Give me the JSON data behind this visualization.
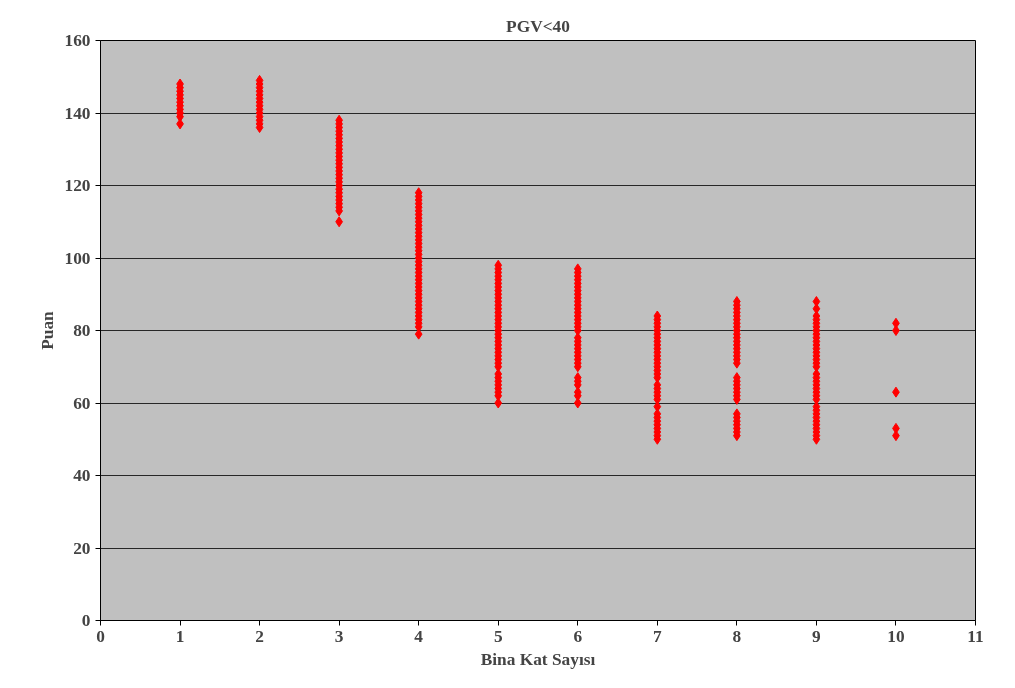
{
  "chart_data": {
    "type": "scatter",
    "title": "PGV<40",
    "xlabel": "Bina Kat Sayısı",
    "ylabel": "Puan",
    "xlim": [
      0,
      11
    ],
    "xticks": [
      0,
      1,
      2,
      3,
      4,
      5,
      6,
      7,
      8,
      9,
      10,
      11
    ],
    "ylim": [
      0,
      160
    ],
    "yticks": [
      0,
      20,
      40,
      60,
      80,
      100,
      120,
      140,
      160
    ],
    "grid": "y",
    "marker": "diamond",
    "series": [
      {
        "color": "#ff0000",
        "x": [
          1,
          1,
          1,
          1,
          1,
          1,
          1,
          1,
          1,
          1,
          1,
          2,
          2,
          2,
          2,
          2,
          2,
          2,
          2,
          2,
          2,
          2,
          2,
          2,
          2,
          3,
          3,
          3,
          3,
          3,
          3,
          3,
          3,
          3,
          3,
          3,
          3,
          3,
          3,
          3,
          3,
          3,
          3,
          3,
          3,
          3,
          3,
          3,
          3,
          3,
          3,
          3,
          4,
          4,
          4,
          4,
          4,
          4,
          4,
          4,
          4,
          4,
          4,
          4,
          4,
          4,
          4,
          4,
          4,
          4,
          4,
          4,
          4,
          4,
          4,
          4,
          4,
          4,
          4,
          4,
          4,
          4,
          4,
          4,
          4,
          4,
          4,
          4,
          4,
          4,
          4,
          5,
          5,
          5,
          5,
          5,
          5,
          5,
          5,
          5,
          5,
          5,
          5,
          5,
          5,
          5,
          5,
          5,
          5,
          5,
          5,
          5,
          5,
          5,
          5,
          5,
          5,
          5,
          5,
          5,
          5,
          5,
          5,
          5,
          5,
          5,
          5,
          5,
          6,
          6,
          6,
          6,
          6,
          6,
          6,
          6,
          6,
          6,
          6,
          6,
          6,
          6,
          6,
          6,
          6,
          6,
          6,
          6,
          6,
          6,
          6,
          6,
          6,
          6,
          6,
          6,
          6,
          6,
          6,
          6,
          6,
          7,
          7,
          7,
          7,
          7,
          7,
          7,
          7,
          7,
          7,
          7,
          7,
          7,
          7,
          7,
          7,
          7,
          7,
          7,
          7,
          7,
          7,
          7,
          7,
          7,
          7,
          7,
          7,
          7,
          7,
          7,
          7,
          8,
          8,
          8,
          8,
          8,
          8,
          8,
          8,
          8,
          8,
          8,
          8,
          8,
          8,
          8,
          8,
          8,
          8,
          8,
          8,
          8,
          8,
          8,
          8,
          8,
          8,
          8,
          8,
          8,
          8,
          8,
          8,
          9,
          9,
          9,
          9,
          9,
          9,
          9,
          9,
          9,
          9,
          9,
          9,
          9,
          9,
          9,
          9,
          9,
          9,
          9,
          9,
          9,
          9,
          9,
          9,
          9,
          9,
          9,
          9,
          9,
          9,
          9,
          9,
          9,
          9,
          9,
          10,
          10,
          10,
          10,
          10
        ],
        "values": [
          137,
          139,
          140,
          141,
          142,
          143,
          144,
          145,
          146,
          147,
          148,
          136,
          137,
          138,
          139,
          140,
          141,
          142,
          143,
          144,
          145,
          146,
          147,
          148,
          149,
          110,
          113,
          114,
          115,
          116,
          117,
          118,
          119,
          120,
          121,
          122,
          123,
          124,
          125,
          126,
          127,
          128,
          129,
          130,
          131,
          132,
          133,
          134,
          135,
          136,
          137,
          138,
          79,
          81,
          82,
          83,
          84,
          85,
          86,
          87,
          88,
          89,
          90,
          91,
          92,
          93,
          94,
          95,
          96,
          97,
          98,
          99,
          100,
          101,
          102,
          103,
          104,
          105,
          106,
          107,
          108,
          109,
          110,
          111,
          112,
          113,
          114,
          115,
          116,
          117,
          118,
          60,
          62,
          63,
          64,
          65,
          66,
          67,
          68,
          70,
          71,
          72,
          73,
          74,
          75,
          76,
          77,
          78,
          79,
          80,
          81,
          82,
          83,
          84,
          85,
          86,
          87,
          88,
          89,
          90,
          91,
          92,
          93,
          94,
          95,
          96,
          97,
          98,
          60,
          62,
          63,
          65,
          66,
          67,
          70,
          71,
          72,
          73,
          74,
          75,
          76,
          77,
          78,
          80,
          81,
          82,
          83,
          84,
          85,
          86,
          87,
          88,
          89,
          90,
          91,
          92,
          93,
          94,
          95,
          96,
          97,
          50,
          51,
          52,
          53,
          54,
          55,
          56,
          57,
          59,
          61,
          62,
          63,
          64,
          65,
          67,
          68,
          69,
          70,
          71,
          72,
          73,
          74,
          75,
          76,
          77,
          78,
          79,
          80,
          81,
          82,
          83,
          84,
          51,
          52,
          53,
          54,
          55,
          56,
          57,
          61,
          62,
          63,
          64,
          65,
          66,
          67,
          71,
          72,
          73,
          74,
          75,
          76,
          77,
          78,
          79,
          80,
          81,
          82,
          83,
          84,
          85,
          86,
          87,
          88,
          50,
          51,
          52,
          53,
          54,
          55,
          56,
          57,
          58,
          59,
          61,
          62,
          63,
          64,
          65,
          66,
          67,
          68,
          70,
          71,
          72,
          73,
          74,
          75,
          76,
          77,
          78,
          79,
          80,
          81,
          82,
          83,
          84,
          86,
          88,
          51,
          53,
          63,
          80,
          82
        ]
      }
    ]
  }
}
